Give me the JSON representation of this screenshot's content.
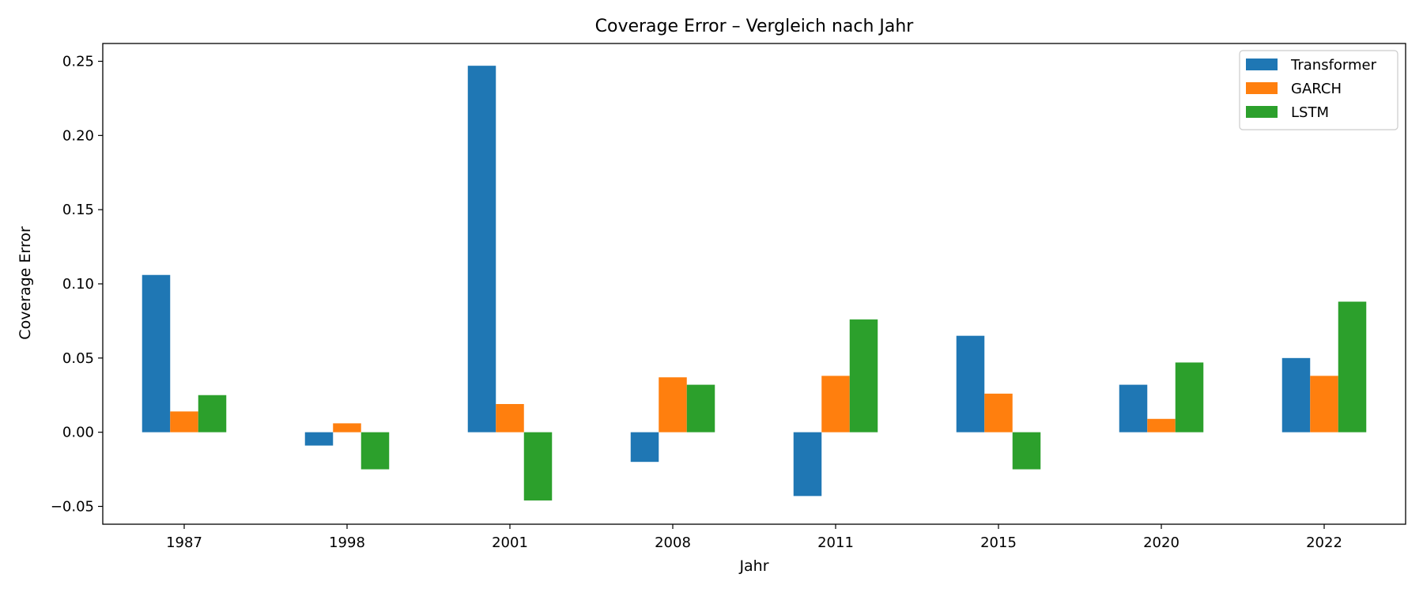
{
  "chart_data": {
    "type": "bar",
    "title": "Coverage Error – Vergleich nach Jahr",
    "xlabel": "Jahr",
    "ylabel": "Coverage Error",
    "categories": [
      "1987",
      "1998",
      "2001",
      "2008",
      "2011",
      "2015",
      "2020",
      "2022"
    ],
    "series": [
      {
        "name": "Transformer",
        "color": "#1f77b4",
        "values": [
          0.106,
          -0.009,
          0.247,
          -0.02,
          -0.043,
          0.065,
          0.032,
          0.05
        ]
      },
      {
        "name": "GARCH",
        "color": "#ff7f0e",
        "values": [
          0.014,
          0.006,
          0.019,
          0.037,
          0.038,
          0.026,
          0.009,
          0.038
        ]
      },
      {
        "name": "LSTM",
        "color": "#2ca02c",
        "values": [
          0.025,
          -0.025,
          -0.046,
          0.032,
          0.076,
          -0.025,
          0.047,
          0.088
        ]
      }
    ],
    "ylim": [
      -0.062,
      0.262
    ],
    "yticks": [
      -0.05,
      0.0,
      0.05,
      0.1,
      0.15,
      0.2,
      0.25
    ],
    "ytick_labels": [
      "−0.05",
      "0.00",
      "0.05",
      "0.10",
      "0.15",
      "0.20",
      "0.25"
    ],
    "grid": false,
    "legend_position": "top-right"
  }
}
